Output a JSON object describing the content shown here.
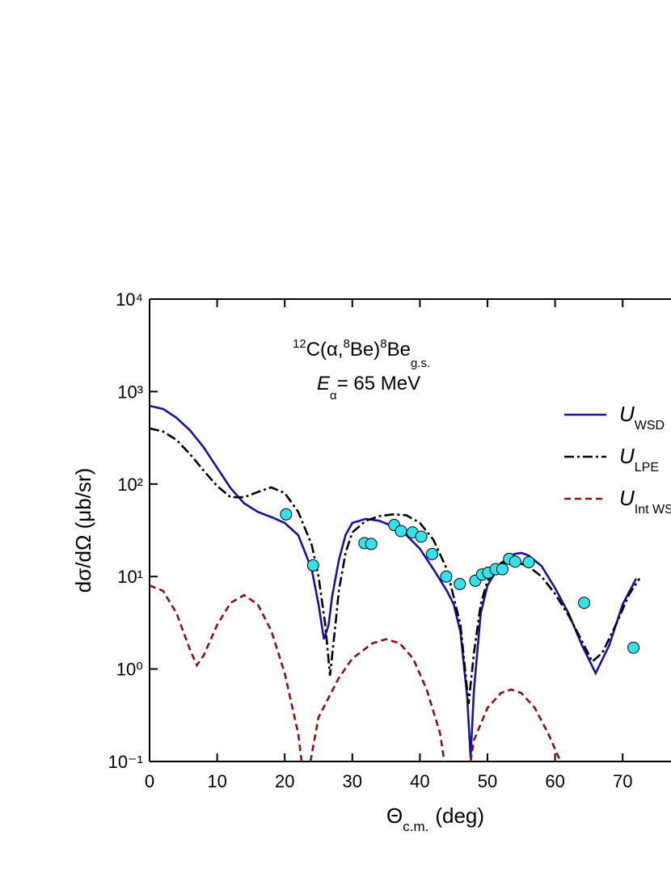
{
  "chart_data": {
    "type": "line",
    "title": [
      "12",
      "C(α,",
      "8",
      "Be)",
      "8",
      "Be",
      "g.s."
    ],
    "subtitle": [
      "E",
      "α",
      "= 65 MeV"
    ],
    "x_label": [
      "Θ",
      "c.m.",
      "(deg)"
    ],
    "y_label": "dσ/dΩ (μb/sr)",
    "xlim": [
      0,
      80
    ],
    "xticks": [
      0,
      10,
      20,
      30,
      40,
      50,
      60,
      70
    ],
    "ylim": [
      0.1,
      10000
    ],
    "log_y": true,
    "yticks": [
      {
        "value": 0.1,
        "label": "10⁻¹"
      },
      {
        "value": 1,
        "label": "10⁰"
      },
      {
        "value": 10,
        "label": "10¹"
      },
      {
        "value": 100,
        "label": "10²"
      },
      {
        "value": 1000,
        "label": "10³"
      },
      {
        "value": 10000,
        "label": "10⁴"
      }
    ],
    "series": [
      {
        "name": [
          "U",
          "WSD"
        ],
        "color": "#1414a0",
        "style": "solid",
        "x": [
          0,
          2,
          4,
          6,
          8,
          10,
          12,
          14,
          16,
          18,
          20,
          22,
          24,
          25,
          25.8,
          26.5,
          27,
          28,
          29,
          30,
          32,
          34,
          36,
          38,
          40,
          42,
          44,
          45,
          46,
          47,
          47.5,
          48,
          49,
          50,
          52,
          54,
          55,
          56,
          58,
          60,
          62,
          64,
          66,
          68,
          70,
          72
        ],
        "values": [
          700,
          650,
          520,
          380,
          250,
          150,
          90,
          62,
          50,
          44,
          38,
          28,
          12,
          5,
          2.1,
          3,
          6,
          15,
          28,
          38,
          42,
          40,
          35,
          28,
          20,
          12,
          7,
          5,
          2.5,
          0.5,
          0.11,
          0.6,
          4,
          8,
          14,
          17.5,
          18,
          17,
          13,
          7.5,
          4,
          1.8,
          0.9,
          1.8,
          5,
          9.5
        ]
      },
      {
        "name": [
          "U",
          "LPE"
        ],
        "color": "#000000",
        "style": "dashdot",
        "x": [
          0,
          2,
          4,
          6,
          8,
          10,
          12,
          14,
          16,
          18,
          20,
          22,
          24,
          25,
          26,
          26.7,
          27.5,
          28,
          29,
          30,
          32,
          34,
          36,
          38,
          40,
          42,
          44,
          46,
          47.2,
          48,
          49,
          50,
          52,
          54,
          56,
          58,
          60,
          62,
          64,
          65.5,
          67,
          69,
          71,
          72.5
        ],
        "values": [
          400,
          370,
          300,
          210,
          140,
          95,
          72,
          72,
          82,
          92,
          80,
          50,
          22,
          10,
          3,
          0.85,
          3,
          7,
          18,
          30,
          40,
          45,
          47,
          46,
          38,
          25,
          12,
          3,
          0.42,
          1.5,
          5,
          9,
          14,
          14.5,
          13,
          10,
          6.5,
          3.8,
          2,
          1.2,
          1.5,
          3,
          6.5,
          9.5
        ]
      },
      {
        "name": [
          "U",
          "Int WSD"
        ],
        "color": "#8b1010",
        "style": "dashed",
        "x": [
          0,
          2,
          4,
          6,
          7,
          8,
          10,
          12,
          14,
          16,
          18,
          20,
          22,
          22.5,
          23,
          23.8,
          25,
          28,
          30,
          33,
          35,
          37,
          39,
          41,
          43,
          43.6,
          45,
          47.5,
          48,
          50,
          52,
          53.5,
          55,
          57,
          59,
          60.8
        ],
        "values": [
          8,
          7,
          4,
          1.6,
          1.1,
          1.4,
          3,
          5.2,
          6.3,
          5,
          2.6,
          0.9,
          0.2,
          0.1,
          null,
          0.1,
          0.3,
          0.8,
          1.3,
          1.9,
          2.1,
          1.9,
          1.3,
          0.6,
          0.2,
          0.1,
          null,
          0.1,
          0.17,
          0.38,
          0.55,
          0.6,
          0.55,
          0.38,
          0.2,
          0.1
        ]
      }
    ],
    "points": {
      "color": "#33e3ea",
      "x": [
        20.2,
        24.2,
        31.8,
        32.8,
        36.2,
        37.2,
        38.9,
        40.2,
        41.8,
        43.9,
        45.9,
        48.2,
        49.2,
        50.1,
        51.2,
        52.2,
        53.2,
        54.1,
        56.1,
        64.3,
        71.6
      ],
      "values": [
        47,
        13.2,
        23,
        22.5,
        36,
        31,
        30,
        27,
        17.5,
        10,
        8.3,
        9,
        10.5,
        11,
        12,
        12,
        15.5,
        14.5,
        14.3,
        5.2,
        1.7
      ]
    }
  }
}
